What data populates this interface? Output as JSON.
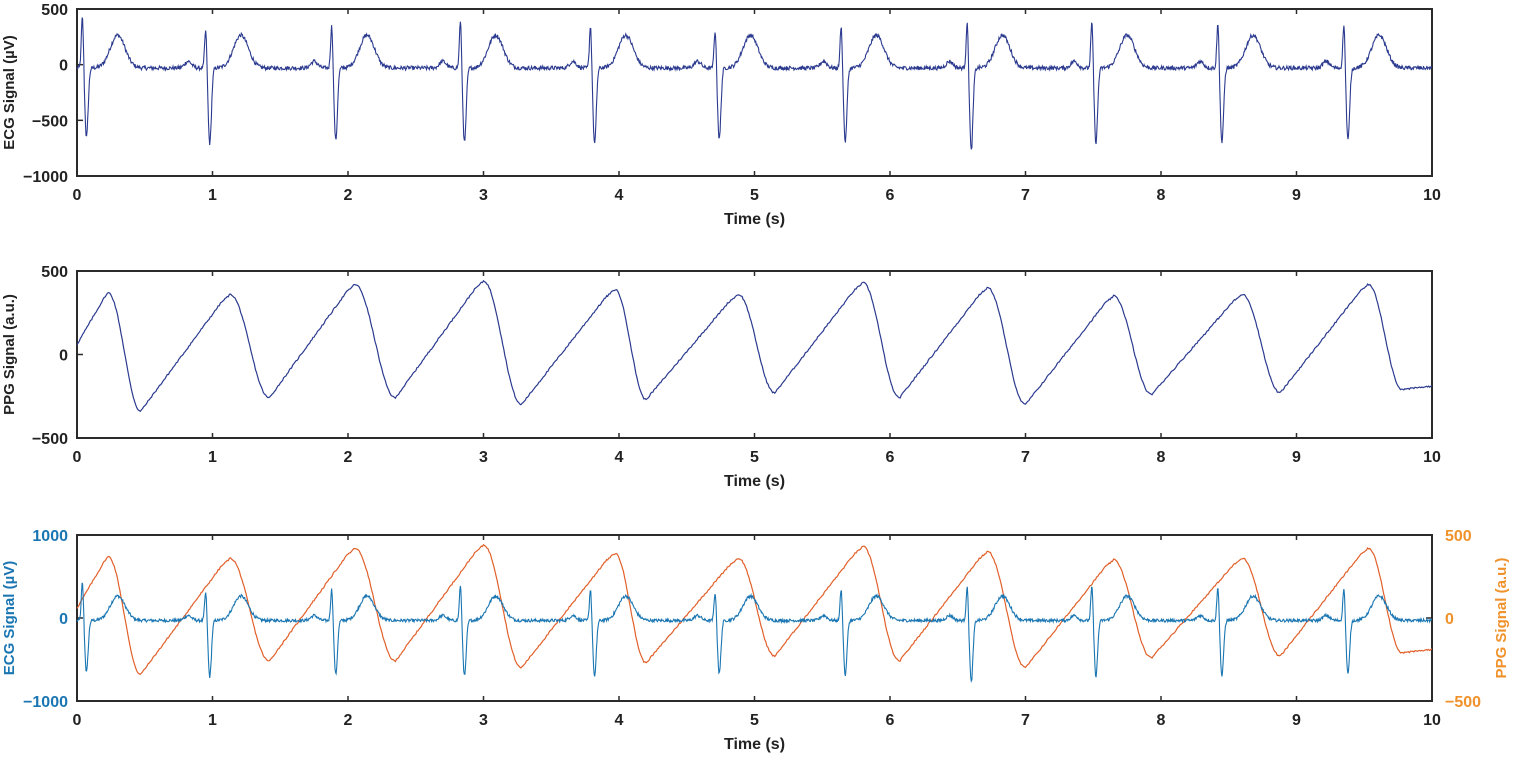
{
  "chart_data": [
    {
      "type": "line",
      "ylabel": "ECG Signal (µV)",
      "xlabel": "Time (s)",
      "xlim": [
        0,
        10
      ],
      "ylim": [
        -1000,
        500
      ],
      "xticks": [
        "0",
        "1",
        "2",
        "3",
        "4",
        "5",
        "6",
        "7",
        "8",
        "9",
        "10"
      ],
      "yticks": [
        "500",
        "0",
        "−500",
        "−1000"
      ],
      "ytick_values": [
        500,
        0,
        -500,
        -1000
      ],
      "grid": false,
      "colors": {
        "ecg": "#2b3a8f",
        "axis": "#2b2b2b"
      },
      "series": [
        {
          "signal": "ecg",
          "r_peak_times": [
            0.04,
            0.95,
            1.88,
            2.83,
            3.79,
            4.71,
            5.64,
            6.57,
            7.49,
            8.42,
            9.35
          ],
          "r_peak_values": [
            480,
            360,
            400,
            440,
            400,
            360,
            400,
            430,
            430,
            420,
            410
          ],
          "s_trough_values": [
            -650,
            -710,
            -680,
            -700,
            -710,
            -670,
            -690,
            -770,
            -700,
            -700,
            -680
          ],
          "t_wave_peak": 280,
          "baseline": -30
        }
      ]
    },
    {
      "type": "line",
      "ylabel": "PPG Signal (a.u.)",
      "xlabel": "Time (s)",
      "xlim": [
        0,
        10
      ],
      "ylim": [
        -500,
        500
      ],
      "xticks": [
        "0",
        "1",
        "2",
        "3",
        "4",
        "5",
        "6",
        "7",
        "8",
        "9",
        "10"
      ],
      "yticks": [
        "500",
        "0",
        "−500"
      ],
      "ytick_values": [
        500,
        0,
        -500
      ],
      "grid": false,
      "colors": {
        "ppg": "#2b3a8f",
        "axis": "#2b2b2b"
      },
      "series": [
        {
          "signal": "ppg",
          "peak_times": [
            0.23,
            1.13,
            2.05,
            3.0,
            3.97,
            4.88,
            5.8,
            6.72,
            7.65,
            8.6,
            9.53
          ],
          "peak_values": [
            370,
            360,
            420,
            440,
            390,
            360,
            430,
            400,
            350,
            360,
            420
          ],
          "trough_times": [
            0.47,
            1.42,
            2.35,
            3.28,
            4.2,
            5.15,
            6.07,
            7.0,
            7.93,
            8.88,
            9.78
          ],
          "trough_values": [
            -340,
            -260,
            -260,
            -300,
            -270,
            -230,
            -260,
            -300,
            -240,
            -230,
            -210
          ],
          "start_value": 60,
          "end_value": -190
        }
      ]
    },
    {
      "type": "line",
      "ylabel": "ECG Signal (µV)",
      "ylabel_right": "PPG Signal (a.u.)",
      "xlabel": "Time (s)",
      "xlim": [
        0,
        10
      ],
      "ylim": [
        -1000,
        1000
      ],
      "ylim_right": [
        -500,
        500
      ],
      "xticks": [
        "0",
        "1",
        "2",
        "3",
        "4",
        "5",
        "6",
        "7",
        "8",
        "9",
        "10"
      ],
      "yticks": [
        "1000",
        "0",
        "−1000"
      ],
      "ytick_values": [
        1000,
        0,
        -1000
      ],
      "yticks_right": [
        "500",
        "0",
        "−500"
      ],
      "ytick_values_right": [
        500,
        0,
        -500
      ],
      "grid": false,
      "colors": {
        "ecg": "#1a76b2",
        "ppg": "#e1602a",
        "left_axis": "#1a76b2",
        "right_axis": "#f0922b",
        "axis": "#2b2b2b"
      },
      "series": [
        {
          "signal": "ecg",
          "axis": "left",
          "same_as": "chart 1 ECG"
        },
        {
          "signal": "ppg",
          "axis": "right",
          "same_as": "chart 2 PPG"
        }
      ]
    }
  ]
}
